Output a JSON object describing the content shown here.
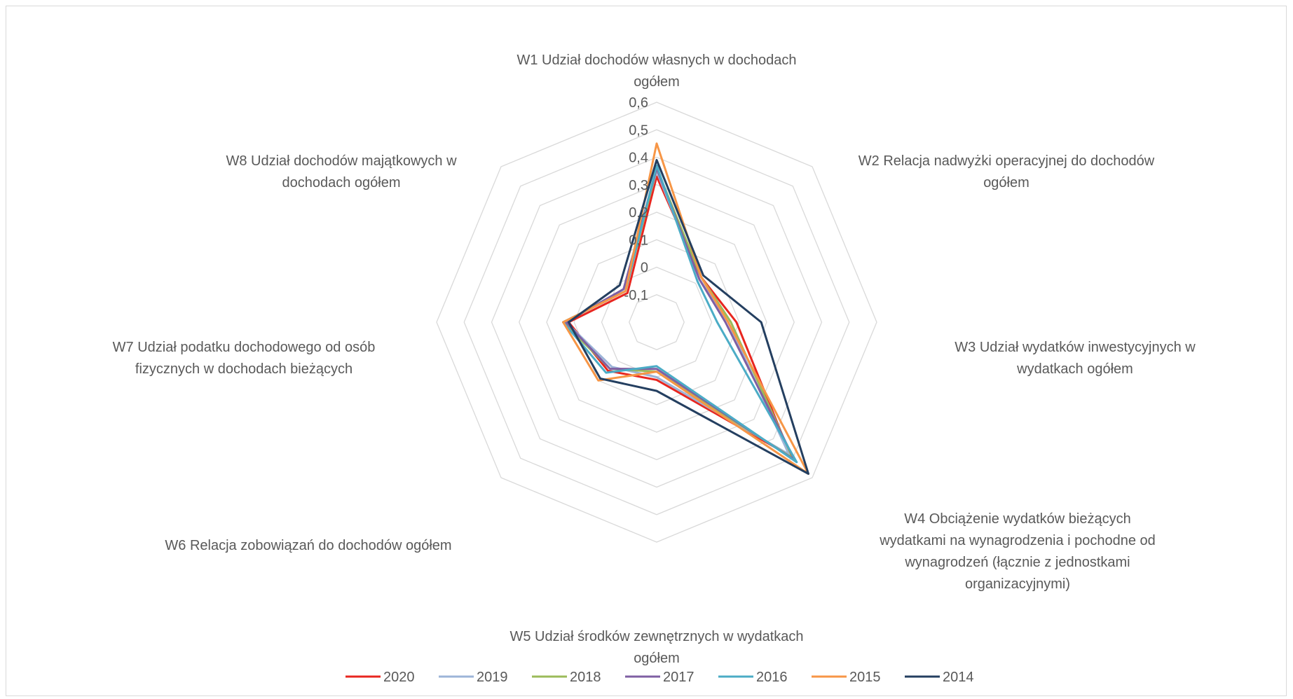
{
  "chart_data": {
    "type": "radar",
    "title": "",
    "axis_range": [
      -0.2,
      0.6
    ],
    "ticks": [
      "-0,1",
      "0",
      "0,1",
      "0,2",
      "0,3",
      "0,4",
      "0,5",
      "0,6"
    ],
    "tick_values": [
      -0.1,
      0,
      0.1,
      0.2,
      0.3,
      0.4,
      0.5,
      0.6
    ],
    "grid": true,
    "legend_position": "bottom",
    "categories": [
      [
        "W1 Udział dochodów własnych w dochodach",
        "ogółem"
      ],
      [
        "W2 Relacja nadwyżki operacyjnej do dochodów",
        "ogółem"
      ],
      [
        "W3 Udział wydatków inwestycyjnych w",
        "wydatkach ogółem"
      ],
      [
        "W4 Obciążenie wydatków bieżących",
        "wydatkami na wynagrodzenia i pochodne od",
        "wynagrodzeń (łącznie z jednostkami",
        "organizacyjnymi)"
      ],
      [
        "W5 Udział środków zewnętrznych w wydatkach",
        "ogółem"
      ],
      [
        "W6 Relacja zobowiązań do dochodów ogółem"
      ],
      [
        "W7 Udział podatku dochodowego od osób",
        "fizycznych w dochodach bieżących"
      ],
      [
        "W8 Udział dochodów majątkowych w",
        "dochodach ogółem"
      ]
    ],
    "series": [
      {
        "name": "2020",
        "color": "#e8261f",
        "values": [
          0.33,
          0.03,
          0.09,
          0.49,
          0.01,
          0.05,
          0.12,
          -0.05
        ]
      },
      {
        "name": "2019",
        "color": "#9cb4d8",
        "values": [
          0.35,
          0.02,
          0.06,
          0.48,
          0.0,
          0.03,
          0.13,
          -0.03
        ]
      },
      {
        "name": "2018",
        "color": "#9bbb59",
        "values": [
          0.36,
          0.03,
          0.07,
          0.5,
          -0.02,
          0.04,
          0.14,
          -0.04
        ]
      },
      {
        "name": "2017",
        "color": "#7f5fa3",
        "values": [
          0.36,
          0.02,
          0.05,
          0.51,
          -0.03,
          0.04,
          0.13,
          -0.03
        ]
      },
      {
        "name": "2016",
        "color": "#4bacc6",
        "values": [
          0.37,
          0.01,
          0.02,
          0.52,
          -0.04,
          0.06,
          0.14,
          -0.04
        ]
      },
      {
        "name": "2015",
        "color": "#f79646",
        "values": [
          0.45,
          0.03,
          0.06,
          0.58,
          -0.02,
          0.1,
          0.14,
          -0.04
        ]
      },
      {
        "name": "2014",
        "color": "#243f60",
        "values": [
          0.39,
          0.04,
          0.18,
          0.58,
          0.05,
          0.09,
          0.12,
          -0.01
        ]
      }
    ]
  }
}
